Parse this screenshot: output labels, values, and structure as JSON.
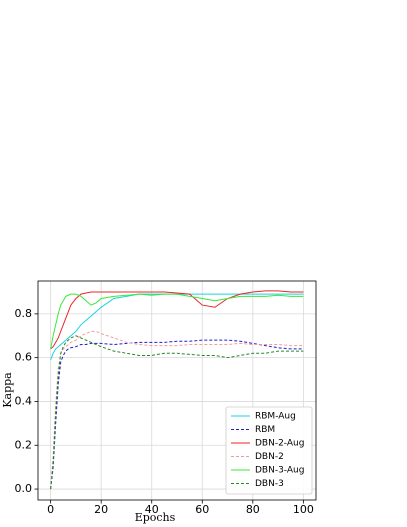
{
  "chart_data": {
    "type": "line",
    "x_label": "Epochs",
    "y_label": "Kappa",
    "x": [
      0,
      1,
      2,
      3,
      4,
      5,
      6,
      7,
      8,
      10,
      12,
      14,
      16,
      18,
      20,
      25,
      30,
      35,
      40,
      45,
      50,
      55,
      60,
      65,
      70,
      75,
      80,
      85,
      90,
      95,
      100
    ],
    "series": [
      {
        "name": "RBM-Aug",
        "color": "#19d3e0",
        "style": "solid",
        "values": [
          0.59,
          0.62,
          0.64,
          0.65,
          0.66,
          0.67,
          0.68,
          0.69,
          0.7,
          0.72,
          0.75,
          0.77,
          0.79,
          0.81,
          0.83,
          0.87,
          0.88,
          0.89,
          0.89,
          0.89,
          0.89,
          0.89,
          0.89,
          0.89,
          0.89,
          0.89,
          0.89,
          0.89,
          0.89,
          0.89,
          0.89
        ]
      },
      {
        "name": "RBM",
        "color": "#1f1fc8",
        "style": "dashed",
        "values": [
          0.0,
          0.1,
          0.3,
          0.48,
          0.58,
          0.61,
          0.63,
          0.64,
          0.645,
          0.65,
          0.66,
          0.66,
          0.665,
          0.665,
          0.665,
          0.66,
          0.665,
          0.67,
          0.67,
          0.67,
          0.675,
          0.675,
          0.68,
          0.68,
          0.68,
          0.675,
          0.665,
          0.655,
          0.645,
          0.64,
          0.64
        ]
      },
      {
        "name": "DBN-2-Aug",
        "color": "#e8262a",
        "style": "solid",
        "values": [
          0.64,
          0.65,
          0.67,
          0.69,
          0.72,
          0.75,
          0.78,
          0.81,
          0.84,
          0.87,
          0.89,
          0.895,
          0.9,
          0.9,
          0.9,
          0.9,
          0.9,
          0.9,
          0.9,
          0.9,
          0.895,
          0.89,
          0.84,
          0.83,
          0.87,
          0.89,
          0.9,
          0.905,
          0.905,
          0.9,
          0.9
        ]
      },
      {
        "name": "DBN-2",
        "color": "#f59a9a",
        "style": "dashed",
        "values": [
          0.0,
          0.15,
          0.38,
          0.55,
          0.62,
          0.64,
          0.65,
          0.66,
          0.67,
          0.68,
          0.7,
          0.71,
          0.72,
          0.72,
          0.71,
          0.69,
          0.67,
          0.66,
          0.655,
          0.655,
          0.655,
          0.66,
          0.66,
          0.66,
          0.66,
          0.665,
          0.66,
          0.66,
          0.66,
          0.655,
          0.655
        ]
      },
      {
        "name": "DBN-3-Aug",
        "color": "#3be83b",
        "style": "solid",
        "values": [
          0.64,
          0.7,
          0.75,
          0.8,
          0.84,
          0.86,
          0.88,
          0.885,
          0.89,
          0.89,
          0.88,
          0.86,
          0.84,
          0.85,
          0.87,
          0.88,
          0.885,
          0.89,
          0.885,
          0.89,
          0.89,
          0.88,
          0.87,
          0.86,
          0.87,
          0.88,
          0.88,
          0.88,
          0.885,
          0.88,
          0.88
        ]
      },
      {
        "name": "DBN-3",
        "color": "#24862a",
        "style": "dashed",
        "values": [
          0.0,
          0.12,
          0.35,
          0.52,
          0.62,
          0.65,
          0.67,
          0.68,
          0.69,
          0.7,
          0.69,
          0.68,
          0.67,
          0.66,
          0.65,
          0.63,
          0.62,
          0.61,
          0.61,
          0.62,
          0.62,
          0.615,
          0.61,
          0.61,
          0.6,
          0.61,
          0.62,
          0.62,
          0.63,
          0.63,
          0.63
        ]
      }
    ],
    "xlim": [
      -5,
      105
    ],
    "ylim": [
      -0.05,
      0.95
    ],
    "xticks": [
      0,
      20,
      40,
      60,
      80,
      100
    ],
    "yticks": [
      {
        "value": 0,
        "label": "0.0"
      },
      0.2,
      0.4,
      0.6,
      0.8
    ],
    "grid": true,
    "legend": "lower right"
  }
}
